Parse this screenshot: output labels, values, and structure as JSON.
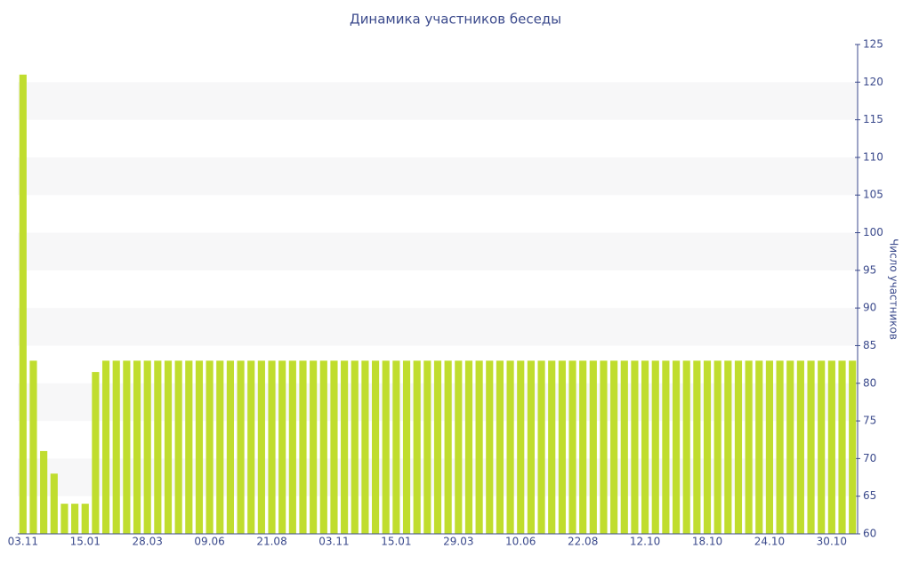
{
  "chart_data": {
    "type": "bar",
    "title": "Динамика участников беседы",
    "y_label": "Число участников",
    "categories": [
      "03.11",
      null,
      null,
      null,
      null,
      null,
      "15.01",
      null,
      null,
      null,
      null,
      null,
      "28.03",
      null,
      null,
      null,
      null,
      null,
      "09.06",
      null,
      null,
      null,
      null,
      null,
      "21.08",
      null,
      null,
      null,
      null,
      null,
      "03.11",
      null,
      null,
      null,
      null,
      null,
      "15.01",
      null,
      null,
      null,
      null,
      null,
      "29.03",
      null,
      null,
      null,
      null,
      null,
      "10.06",
      null,
      null,
      null,
      null,
      null,
      "22.08",
      null,
      null,
      null,
      null,
      null,
      "12.10",
      null,
      null,
      null,
      null,
      null,
      "18.10",
      null,
      null,
      null,
      null,
      null,
      "24.10",
      null,
      null,
      null,
      null,
      null,
      "30.10",
      null,
      null
    ],
    "values": [
      121,
      83,
      71,
      68,
      64,
      64,
      64,
      81.5,
      83,
      83,
      83,
      83,
      83,
      83,
      83,
      83,
      83,
      83,
      83,
      83,
      83,
      83,
      83,
      83,
      83,
      83,
      83,
      83,
      83,
      83,
      83,
      83,
      83,
      83,
      83,
      83,
      83,
      83,
      83,
      83,
      83,
      83,
      83,
      83,
      83,
      83,
      83,
      83,
      83,
      83,
      83,
      83,
      83,
      83,
      83,
      83,
      83,
      83,
      83,
      83,
      83,
      83,
      83,
      83,
      83,
      83,
      83,
      83,
      83,
      83,
      83,
      83,
      83,
      83,
      83,
      83,
      83,
      83,
      83,
      83,
      83
    ],
    "color": "#c0dd2e",
    "ylim": [
      60,
      125
    ],
    "yticks": [
      60,
      65,
      70,
      75,
      80,
      85,
      90,
      95,
      100,
      105,
      110,
      115,
      120,
      125
    ],
    "grid": true,
    "y_axis_side": "right"
  }
}
